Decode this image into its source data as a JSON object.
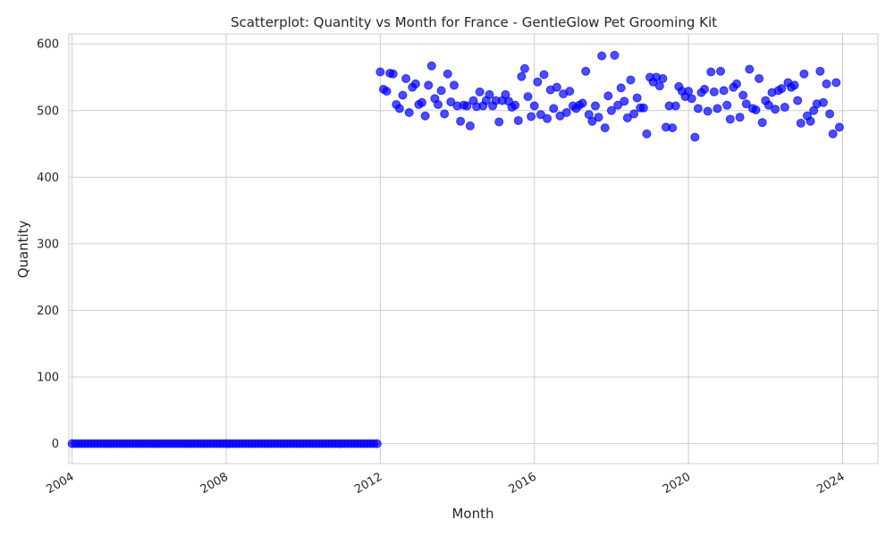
{
  "chart_data": {
    "type": "scatter",
    "title": "Scatterplot: Quantity vs Month for France - GentleGlow Pet Grooming Kit",
    "xlabel": "Month",
    "ylabel": "Quantity",
    "xlim": [
      "2003-12",
      "2024-12"
    ],
    "ylim": [
      -30,
      615
    ],
    "x_ticks": [
      "2004",
      "2008",
      "2012",
      "2016",
      "2020",
      "2024"
    ],
    "y_ticks": [
      0,
      100,
      200,
      300,
      400,
      500,
      600
    ],
    "grid": true,
    "legend": "none",
    "marker_color": "#0000ff",
    "series": [
      {
        "x": [
          "2004-01",
          "2004-02",
          "2004-03",
          "2004-04",
          "2004-05",
          "2004-06",
          "2004-07",
          "2004-08",
          "2004-09",
          "2004-10",
          "2004-11",
          "2004-12",
          "2005-01",
          "2005-02",
          "2005-03",
          "2005-04",
          "2005-05",
          "2005-06",
          "2005-07",
          "2005-08",
          "2005-09",
          "2005-10",
          "2005-11",
          "2005-12",
          "2006-01",
          "2006-02",
          "2006-03",
          "2006-04",
          "2006-05",
          "2006-06",
          "2006-07",
          "2006-08",
          "2006-09",
          "2006-10",
          "2006-11",
          "2006-12",
          "2007-01",
          "2007-02",
          "2007-03",
          "2007-04",
          "2007-05",
          "2007-06",
          "2007-07",
          "2007-08",
          "2007-09",
          "2007-10",
          "2007-11",
          "2007-12",
          "2008-01",
          "2008-02",
          "2008-03",
          "2008-04",
          "2008-05",
          "2008-06",
          "2008-07",
          "2008-08",
          "2008-09",
          "2008-10",
          "2008-11",
          "2008-12",
          "2009-01",
          "2009-02",
          "2009-03",
          "2009-04",
          "2009-05",
          "2009-06",
          "2009-07",
          "2009-08",
          "2009-09",
          "2009-10",
          "2009-11",
          "2009-12",
          "2010-01",
          "2010-02",
          "2010-03",
          "2010-04",
          "2010-05",
          "2010-06",
          "2010-07",
          "2010-08",
          "2010-09",
          "2010-10",
          "2010-11",
          "2010-12",
          "2011-01",
          "2011-02",
          "2011-03",
          "2011-04",
          "2011-05",
          "2011-06",
          "2011-07",
          "2011-08",
          "2011-09",
          "2011-10",
          "2011-11",
          "2011-12",
          "2012-01",
          "2012-02",
          "2012-03",
          "2012-04",
          "2012-05",
          "2012-06",
          "2012-07",
          "2012-08",
          "2012-09",
          "2012-10",
          "2012-11",
          "2012-12",
          "2013-01",
          "2013-02",
          "2013-03",
          "2013-04",
          "2013-05",
          "2013-06",
          "2013-07",
          "2013-08",
          "2013-09",
          "2013-10",
          "2013-11",
          "2013-12",
          "2014-01",
          "2014-02",
          "2014-03",
          "2014-04",
          "2014-05",
          "2014-06",
          "2014-07",
          "2014-08",
          "2014-09",
          "2014-10",
          "2014-11",
          "2014-12",
          "2015-01",
          "2015-02",
          "2015-03",
          "2015-04",
          "2015-05",
          "2015-06",
          "2015-07",
          "2015-08",
          "2015-09",
          "2015-10",
          "2015-11",
          "2015-12",
          "2016-01",
          "2016-02",
          "2016-03",
          "2016-04",
          "2016-05",
          "2016-06",
          "2016-07",
          "2016-08",
          "2016-09",
          "2016-10",
          "2016-11",
          "2016-12",
          "2017-01",
          "2017-02",
          "2017-03",
          "2017-04",
          "2017-05",
          "2017-06",
          "2017-07",
          "2017-08",
          "2017-09",
          "2017-10",
          "2017-11",
          "2017-12",
          "2018-01",
          "2018-02",
          "2018-03",
          "2018-04",
          "2018-05",
          "2018-06",
          "2018-07",
          "2018-08",
          "2018-09",
          "2018-10",
          "2018-11",
          "2018-12",
          "2019-01",
          "2019-02",
          "2019-03",
          "2019-04",
          "2019-05",
          "2019-06",
          "2019-07",
          "2019-08",
          "2019-09",
          "2019-10",
          "2019-11",
          "2019-12",
          "2020-01",
          "2020-02",
          "2020-03",
          "2020-04",
          "2020-05",
          "2020-06",
          "2020-07",
          "2020-08",
          "2020-09",
          "2020-10",
          "2020-11",
          "2020-12",
          "2021-01",
          "2021-02",
          "2021-03",
          "2021-04",
          "2021-05",
          "2021-06",
          "2021-07",
          "2021-08",
          "2021-09",
          "2021-10",
          "2021-11",
          "2021-12",
          "2022-01",
          "2022-02",
          "2022-03",
          "2022-04",
          "2022-05",
          "2022-06",
          "2022-07",
          "2022-08",
          "2022-09",
          "2022-10",
          "2022-11",
          "2022-12",
          "2023-01",
          "2023-02",
          "2023-03",
          "2023-04",
          "2023-05",
          "2023-06",
          "2023-07",
          "2023-08",
          "2023-09",
          "2023-10",
          "2023-11",
          "2023-12"
        ],
        "y": [
          0,
          0,
          0,
          0,
          0,
          0,
          0,
          0,
          0,
          0,
          0,
          0,
          0,
          0,
          0,
          0,
          0,
          0,
          0,
          0,
          0,
          0,
          0,
          0,
          0,
          0,
          0,
          0,
          0,
          0,
          0,
          0,
          0,
          0,
          0,
          0,
          0,
          0,
          0,
          0,
          0,
          0,
          0,
          0,
          0,
          0,
          0,
          0,
          0,
          0,
          0,
          0,
          0,
          0,
          0,
          0,
          0,
          0,
          0,
          0,
          0,
          0,
          0,
          0,
          0,
          0,
          0,
          0,
          0,
          0,
          0,
          0,
          0,
          0,
          0,
          0,
          0,
          0,
          0,
          0,
          0,
          0,
          0,
          0,
          0,
          0,
          0,
          0,
          0,
          0,
          0,
          0,
          0,
          0,
          0,
          0,
          558,
          532,
          529,
          556,
          555,
          509,
          503,
          523,
          548,
          497,
          535,
          540,
          509,
          512,
          492,
          538,
          567,
          518,
          509,
          530,
          495,
          555,
          513,
          538,
          507,
          484,
          508,
          507,
          477,
          515,
          506,
          528,
          507,
          515,
          524,
          507,
          515,
          483,
          515,
          524,
          514,
          505,
          508,
          485,
          551,
          563,
          521,
          491,
          507,
          543,
          494,
          554,
          488,
          531,
          503,
          535,
          492,
          525,
          497,
          529,
          507,
          503,
          508,
          511,
          559,
          494,
          484,
          507,
          490,
          582,
          474,
          522,
          500,
          583,
          508,
          534,
          514,
          489,
          546,
          495,
          519,
          504,
          504,
          465,
          550,
          543,
          550,
          537,
          548,
          475,
          507,
          474,
          507,
          536,
          529,
          521,
          529,
          518,
          460,
          503,
          527,
          532,
          499,
          558,
          528,
          503,
          559,
          530,
          508,
          487,
          535,
          540,
          490,
          523,
          510,
          562,
          503,
          501,
          548,
          482,
          515,
          508,
          527,
          502,
          530,
          533,
          505,
          542,
          535,
          538,
          515,
          481,
          555,
          492,
          484,
          500,
          510,
          559,
          512,
          540,
          495,
          465,
          542,
          475
        ]
      }
    ]
  }
}
